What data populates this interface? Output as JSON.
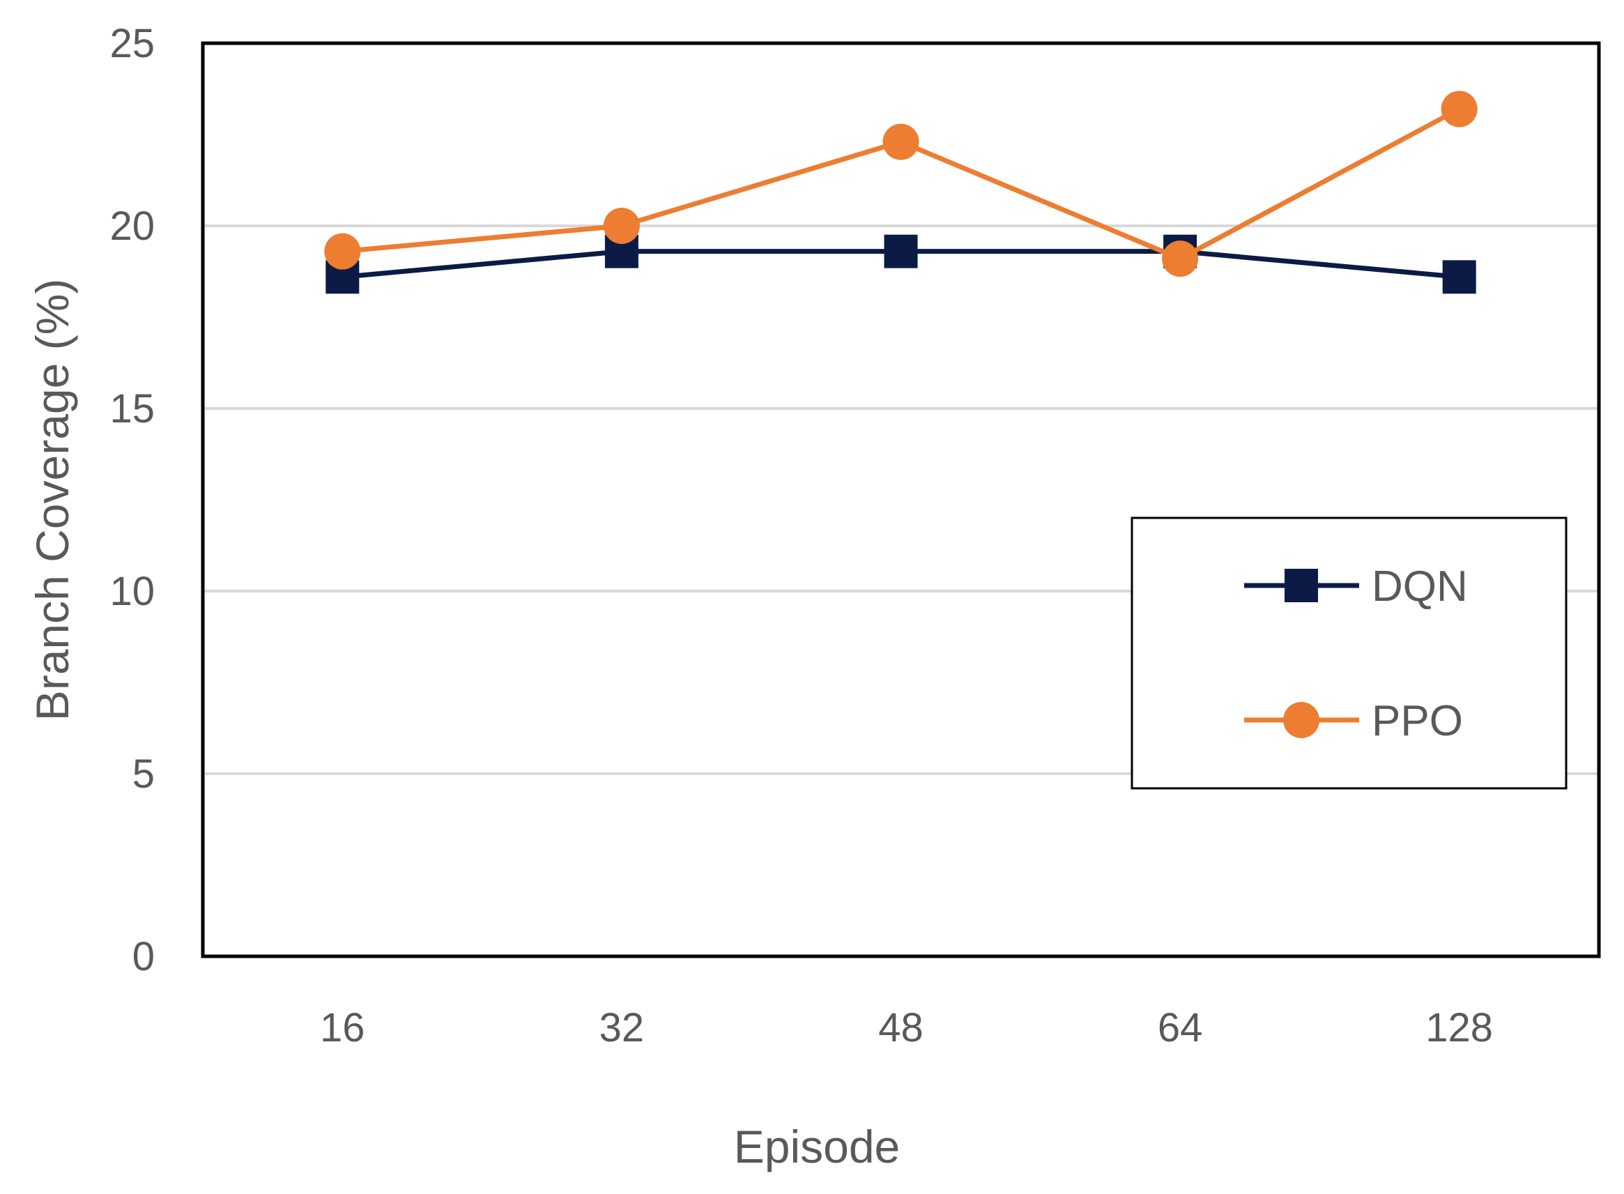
{
  "chart_data": {
    "type": "line",
    "title": "",
    "xlabel": "Episode",
    "ylabel": "Branch Coverage (%)",
    "categories": [
      "16",
      "32",
      "48",
      "64",
      "128"
    ],
    "ylim": [
      0,
      25
    ],
    "yticks": [
      0,
      5,
      10,
      15,
      20,
      25
    ],
    "grid": true,
    "legend_position": "right",
    "series": [
      {
        "name": "DQN",
        "values": [
          18.6,
          19.3,
          19.3,
          19.3,
          18.6
        ],
        "color": "#0b1b46",
        "marker": "square"
      },
      {
        "name": "PPO",
        "values": [
          19.3,
          20.0,
          22.3,
          19.1,
          23.2
        ],
        "color": "#ed7d31",
        "marker": "circle"
      }
    ]
  }
}
